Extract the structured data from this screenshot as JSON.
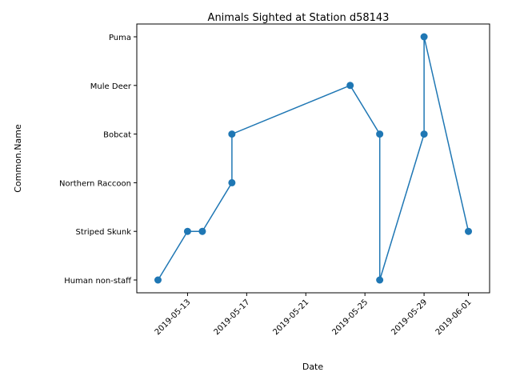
{
  "chart_data": {
    "type": "line",
    "title": "Animals Sighted at Station d58143",
    "xlabel": "Date",
    "ylabel": "Common.Name",
    "categories": [
      "Human non-staff",
      "Striped Skunk",
      "Northern Raccoon",
      "Bobcat",
      "Mule Deer",
      "Puma"
    ],
    "x_ticks": [
      "2019-05-13",
      "2019-05-17",
      "2019-05-21",
      "2019-05-25",
      "2019-05-29",
      "2019-06-01"
    ],
    "xlim": [
      "2019-05-10",
      "2019-06-02"
    ],
    "series": [
      {
        "color": "#1f77b4",
        "points": [
          {
            "x": "2019-05-11",
            "y": "Human non-staff"
          },
          {
            "x": "2019-05-13",
            "y": "Striped Skunk"
          },
          {
            "x": "2019-05-14",
            "y": "Striped Skunk"
          },
          {
            "x": "2019-05-16",
            "y": "Northern Raccoon"
          },
          {
            "x": "2019-05-16",
            "y": "Bobcat"
          },
          {
            "x": "2019-05-24",
            "y": "Mule Deer"
          },
          {
            "x": "2019-05-26",
            "y": "Bobcat"
          },
          {
            "x": "2019-05-26",
            "y": "Human non-staff"
          },
          {
            "x": "2019-05-29",
            "y": "Bobcat"
          },
          {
            "x": "2019-05-29",
            "y": "Puma"
          },
          {
            "x": "2019-06-01",
            "y": "Striped Skunk"
          }
        ]
      }
    ],
    "grid": false,
    "marker": "circle"
  }
}
